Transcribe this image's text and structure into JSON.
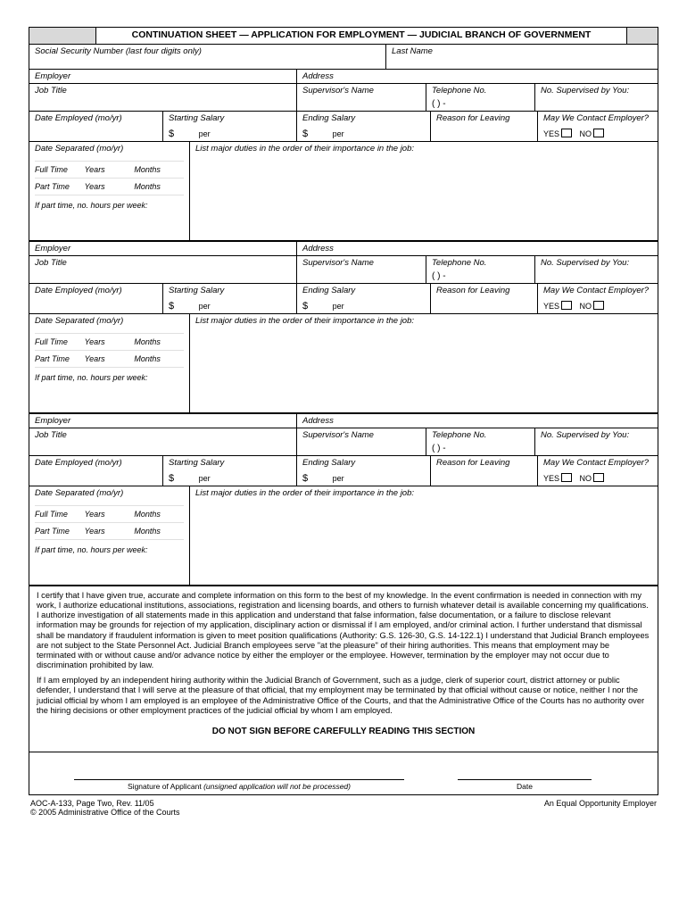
{
  "title": "CONTINUATION SHEET — APPLICATION FOR EMPLOYMENT — JUDICIAL BRANCH OF GOVERNMENT",
  "ssn_label": "Social Security Number (last four digits only)",
  "lastname_label": "Last Name",
  "labels": {
    "employer": "Employer",
    "address": "Address",
    "jobtitle": "Job Title",
    "supervisor": "Supervisor's Name",
    "telephone": "Telephone No.",
    "phone_placeholder": "(     )       -",
    "nosup": "No. Supervised by You:",
    "dateemp": "Date Employed (mo/yr)",
    "ssal": "Starting Salary",
    "esal": "Ending Salary",
    "reason": "Reason for Leaving",
    "contact": "May We Contact Employer?",
    "yes": "YES",
    "no": "NO",
    "dollar": "$",
    "per": "per",
    "datesep": "Date Separated (mo/yr)",
    "duties": "List major duties in the order of their importance in the job:",
    "ft": "Full Time",
    "pt": "Part Time",
    "years": "Years",
    "months": "Months",
    "ipt": "If part time, no. hours per week:"
  },
  "cert_p1": "I certify that I have given true, accurate and complete information on this form to the best of my knowledge. In the event confirmation is needed in connection with my work, I authorize educational institutions, associations, registration and licensing boards, and others to furnish whatever detail is available concerning my qualifications. I authorize investigation of all statements made in this application and understand that false information, false documentation, or a failure to disclose relevant information may be grounds for rejection of my application, disciplinary action or dismissal if I am employed, and/or criminal action. I further understand that dismissal shall be mandatory if fraudulent information is given to meet position qualifications (Authority: G.S. 126-30, G.S. 14-122.1) I understand that Judicial Branch employees are not subject to the State Personnel Act. Judicial Branch employees serve \"at the pleasure\" of their hiring authorities. This means that employment may be terminated with or without cause and/or advance notice by either the employer or the employee. However, termination by the employer may not occur due to discrimination prohibited by law.",
  "cert_p2": "If I am employed by an independent hiring authority within the Judicial Branch of Government, such as a judge, clerk of superior court, district attorney or public defender, I understand that I will serve at the pleasure of that official, that my employment may be terminated by that official without cause or notice, neither I nor the judicial official by whom I am employed is an employee of the Administrative Office of the Courts, and that the Administrative Office of the Courts has no authority over the hiring decisions or other employment practices of the judicial official by whom I am employed.",
  "warning": "DO NOT SIGN BEFORE CAREFULLY READING THIS SECTION",
  "sig_applicant": "Signature of Applicant ",
  "sig_warn": "(unsigned application will not be processed)",
  "sig_date": "Date",
  "footer_l1": "AOC-A-133, Page Two, Rev. 11/05",
  "footer_l2": "© 2005 Administrative Office of the Courts",
  "footer_r": "An Equal Opportunity Employer"
}
